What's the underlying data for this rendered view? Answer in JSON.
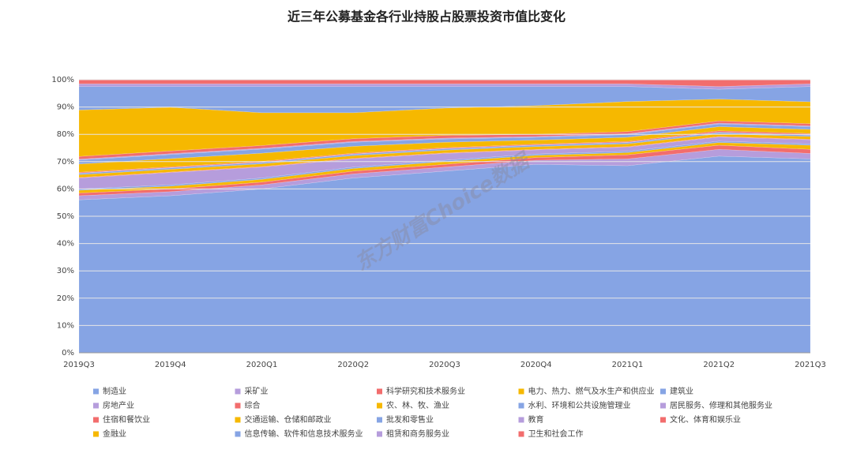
{
  "chart_data": {
    "type": "stacked-area",
    "title": "近三年公募基金各行业持股占股票投资市值比变化",
    "watermark": "东方财富Choice数据",
    "categories": [
      "2019Q3",
      "2019Q4",
      "2020Q1",
      "2020Q2",
      "2020Q3",
      "2020Q4",
      "2021Q1",
      "2021Q2",
      "2021Q3"
    ],
    "ylim": [
      0,
      100
    ],
    "yticks": [
      {
        "value": 0,
        "label": "0%"
      },
      {
        "value": 10,
        "label": "10%"
      },
      {
        "value": 20,
        "label": "20%"
      },
      {
        "value": 30,
        "label": "30%"
      },
      {
        "value": 40,
        "label": "40%"
      },
      {
        "value": 50,
        "label": "50%"
      },
      {
        "value": 60,
        "label": "60%"
      },
      {
        "value": 70,
        "label": "70%"
      },
      {
        "value": 80,
        "label": "80%"
      },
      {
        "value": 90,
        "label": "90%"
      },
      {
        "value": 100,
        "label": "100%"
      }
    ],
    "grid": true,
    "series": [
      {
        "name": "制造业",
        "color": "#86a4e4",
        "values": [
          56,
          57.5,
          60,
          64,
          66.5,
          69,
          68.5,
          72,
          71
        ]
      },
      {
        "name": "采矿业",
        "color": "#b69ddc",
        "values": [
          1.5,
          1.5,
          1.5,
          1.5,
          1.5,
          1.5,
          2.5,
          2.5,
          2
        ]
      },
      {
        "name": "科学研究和技术服务业",
        "color": "#f26d6d",
        "values": [
          1,
          1,
          1,
          1,
          1,
          1,
          1.5,
          1.5,
          1.5
        ]
      },
      {
        "name": "电力、热力、燃气及水生产和供应业",
        "color": "#f6b800",
        "values": [
          1,
          1,
          1,
          1,
          1,
          0.8,
          0.8,
          1,
          1.5
        ]
      },
      {
        "name": "建筑业",
        "color": "#86a4e4",
        "values": [
          0.5,
          0.5,
          0.5,
          0.5,
          0.5,
          0.5,
          0.5,
          0.5,
          0.5
        ]
      },
      {
        "name": "房地产业",
        "color": "#b69ddc",
        "values": [
          4,
          4.5,
          4,
          3,
          2.5,
          1.5,
          1.5,
          1.5,
          1.5
        ]
      },
      {
        "name": "综合",
        "color": "#f26d6d",
        "values": [
          0.2,
          0.2,
          0.2,
          0.2,
          0.2,
          0.2,
          0.2,
          0.2,
          0.2
        ]
      },
      {
        "name": "农、林、牧、渔业",
        "color": "#f6b800",
        "values": [
          1,
          1,
          1,
          1,
          1,
          1,
          1,
          1,
          1
        ]
      },
      {
        "name": "水利、环境和公共设施管理业",
        "color": "#86a4e4",
        "values": [
          0.5,
          0.5,
          0.5,
          0.5,
          0.5,
          0.5,
          0.5,
          0.5,
          0.5
        ]
      },
      {
        "name": "居民服务、修理和其他服务业",
        "color": "#b69ddc",
        "values": [
          0.1,
          0.1,
          0.1,
          0.1,
          0.1,
          0.1,
          0.1,
          0.1,
          0.1
        ]
      },
      {
        "name": "住宿和餐饮业",
        "color": "#f26d6d",
        "values": [
          0.3,
          0.3,
          0.3,
          0.3,
          0.3,
          0.3,
          0.3,
          0.5,
          0.5
        ]
      },
      {
        "name": "交通运输、仓储和邮政业",
        "color": "#f6b800",
        "values": [
          3,
          3,
          3,
          2.5,
          2,
          1.5,
          1.5,
          1.5,
          1.5
        ]
      },
      {
        "name": "批发和零售业",
        "color": "#86a4e4",
        "values": [
          1.5,
          1.5,
          1.5,
          1.5,
          1.2,
          1,
          1,
          1,
          1
        ]
      },
      {
        "name": "教育",
        "color": "#b69ddc",
        "values": [
          0.3,
          0.3,
          0.3,
          0.3,
          0.3,
          0.3,
          0.3,
          0.3,
          0.3
        ]
      },
      {
        "name": "文化、体育和娱乐业",
        "color": "#f26d6d",
        "values": [
          1,
          1,
          1,
          1,
          1,
          0.8,
          0.8,
          0.8,
          0.8
        ]
      },
      {
        "name": "金融业",
        "color": "#f6b800",
        "values": [
          17,
          16,
          12,
          9.5,
          10,
          10.5,
          11,
          8,
          8
        ]
      },
      {
        "name": "信息传输、软件和信息技术服务业",
        "color": "#86a4e4",
        "values": [
          8.6,
          7.6,
          9.6,
          9.6,
          7.9,
          7,
          5.5,
          3.6,
          5.6
        ]
      },
      {
        "name": "租赁和商务服务业",
        "color": "#b69ddc",
        "values": [
          1,
          1,
          1,
          1,
          1,
          1,
          1,
          1,
          1
        ]
      },
      {
        "name": "卫生和社会工作",
        "color": "#f26d6d",
        "values": [
          1.5,
          1.5,
          1.5,
          1.5,
          1.5,
          1.5,
          1.5,
          2.5,
          1.5
        ]
      }
    ]
  }
}
